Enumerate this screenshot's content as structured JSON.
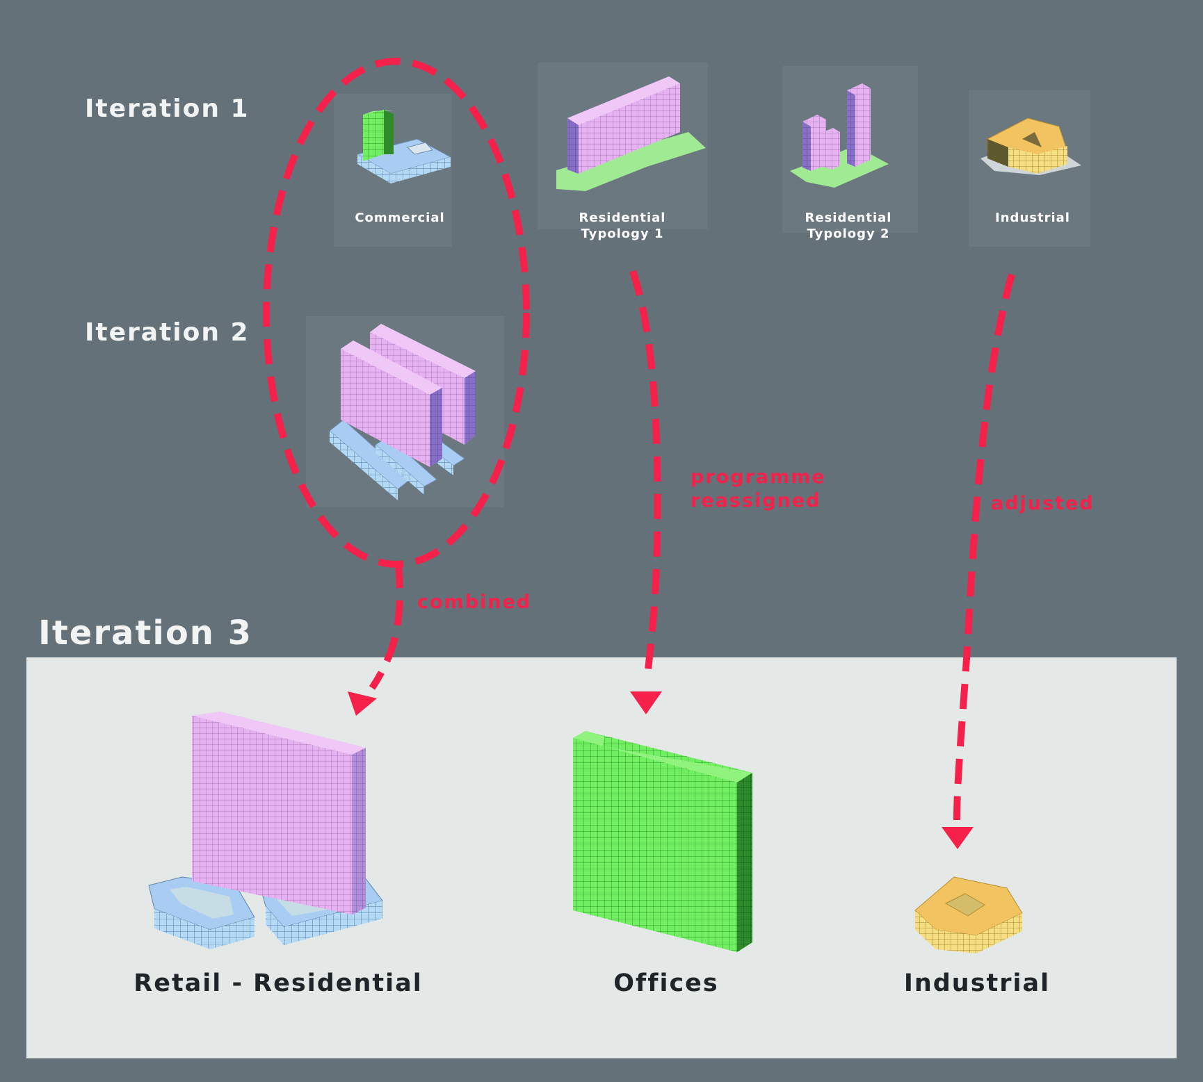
{
  "iterations": {
    "iteration_1": "Iteration 1",
    "iteration_2": "Iteration 2",
    "iteration_3": "Iteration 3"
  },
  "iteration_1_items": [
    {
      "label": "Commercial"
    },
    {
      "label": "Residential\nTypology 1"
    },
    {
      "label": "Residential\nTypology 2"
    },
    {
      "label": "Industrial"
    }
  ],
  "annotations": {
    "combined": "combined",
    "reassigned": "programme\nreassigned",
    "adjusted": "adjusted"
  },
  "iteration_3_items": [
    {
      "label": "Retail - Residential"
    },
    {
      "label": "Offices"
    },
    {
      "label": "Industrial"
    }
  ],
  "colors": {
    "background": "#647179",
    "panel": "#e4e9e7",
    "arrow": "#f5214a",
    "residential": "#e8b4f4",
    "retail": "#a9cdf2",
    "office": "#78f06a",
    "industrial": "#f2c461"
  }
}
